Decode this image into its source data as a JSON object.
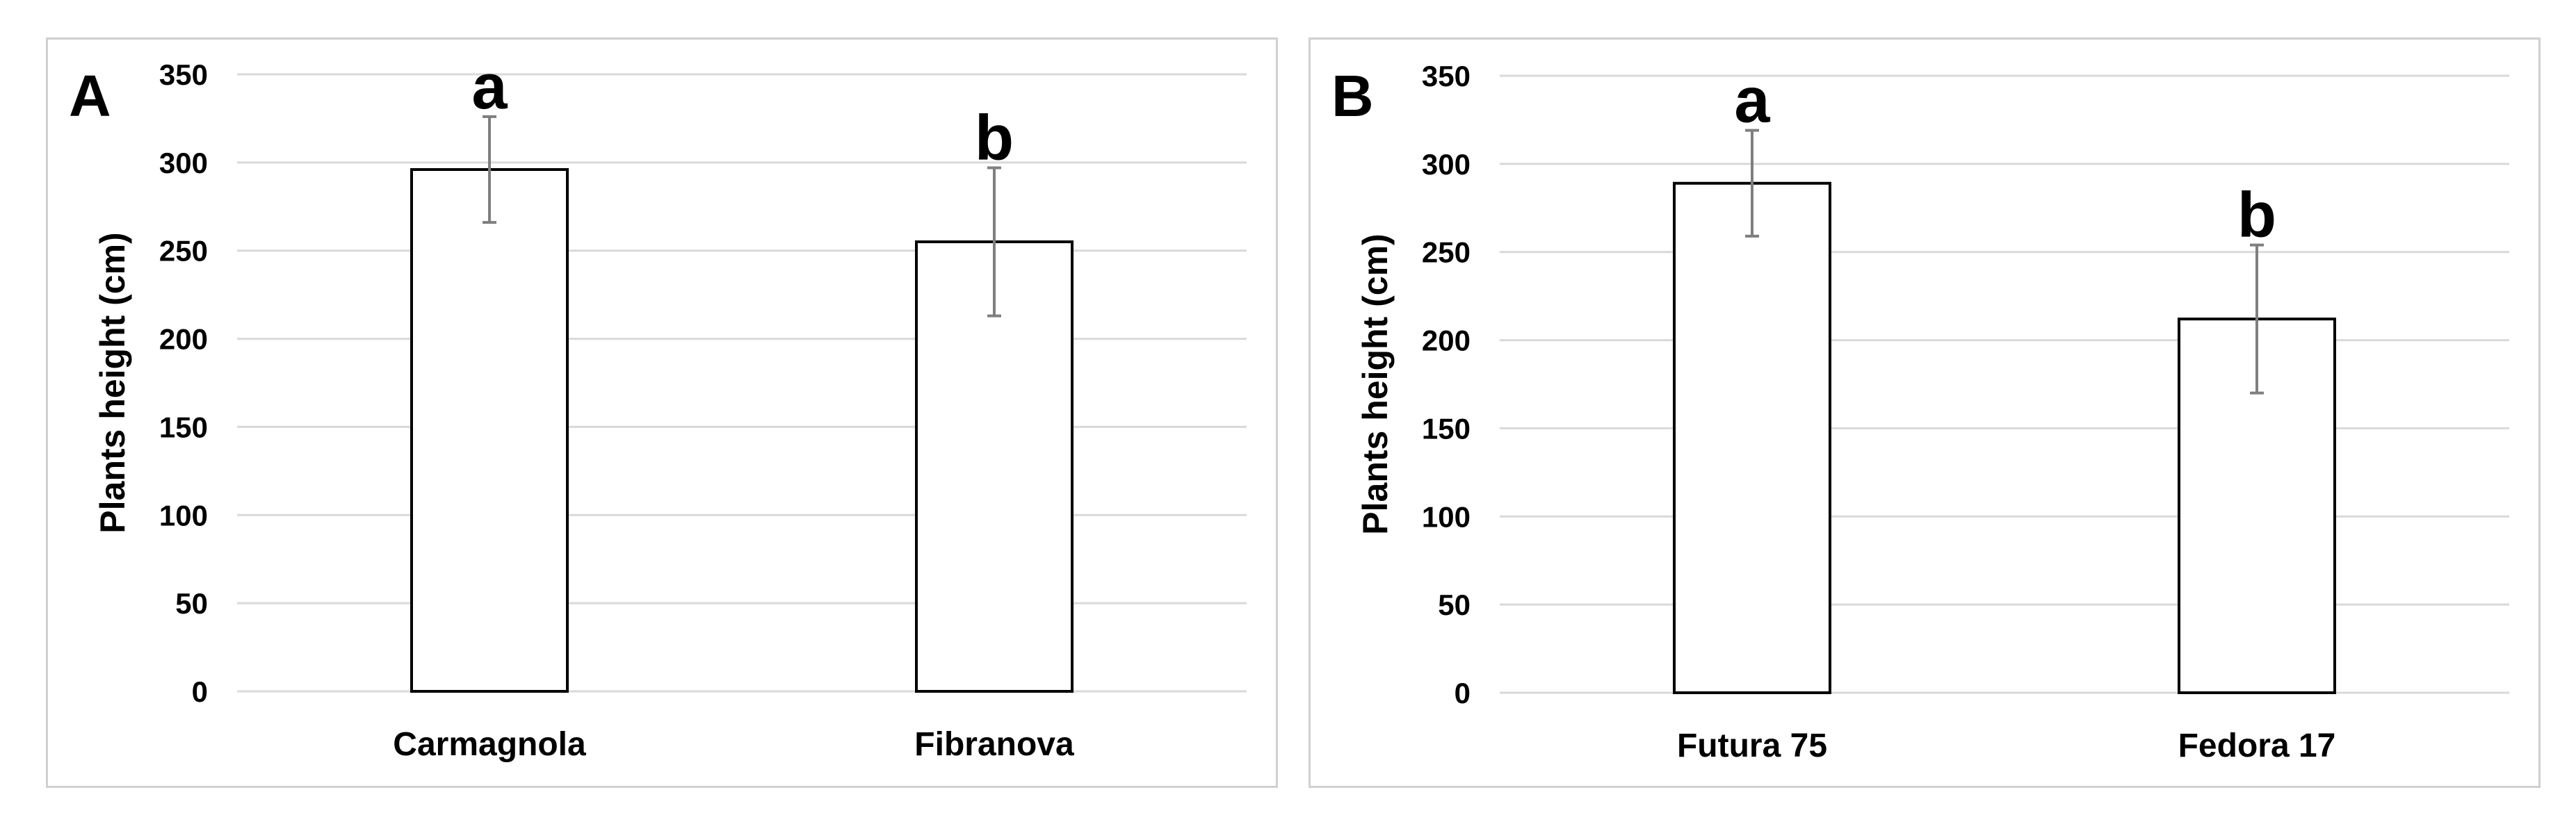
{
  "chart_data": [
    {
      "type": "bar",
      "panel_label": "A",
      "ylabel": "Plants height (cm)",
      "xlabel": "",
      "ylim": [
        0,
        350
      ],
      "yticks": [
        0,
        50,
        100,
        150,
        200,
        250,
        300,
        350
      ],
      "grid": true,
      "categories": [
        "Carmagnola",
        "Fibranova"
      ],
      "values": [
        296,
        255
      ],
      "errors": [
        30,
        42
      ],
      "significance": [
        "a",
        "b"
      ],
      "bar_fill": "#ffffff",
      "bar_edge": "#000000",
      "error_color": "#7f7f7f"
    },
    {
      "type": "bar",
      "panel_label": "B",
      "ylabel": "Plants height (cm)",
      "xlabel": "",
      "ylim": [
        0,
        350
      ],
      "yticks": [
        0,
        50,
        100,
        150,
        200,
        250,
        300,
        350
      ],
      "grid": true,
      "categories": [
        "Futura 75",
        "Fedora 17"
      ],
      "values": [
        289,
        212
      ],
      "errors": [
        30,
        42
      ],
      "significance": [
        "a",
        "b"
      ],
      "bar_fill": "#ffffff",
      "bar_edge": "#000000",
      "error_color": "#7f7f7f"
    }
  ]
}
